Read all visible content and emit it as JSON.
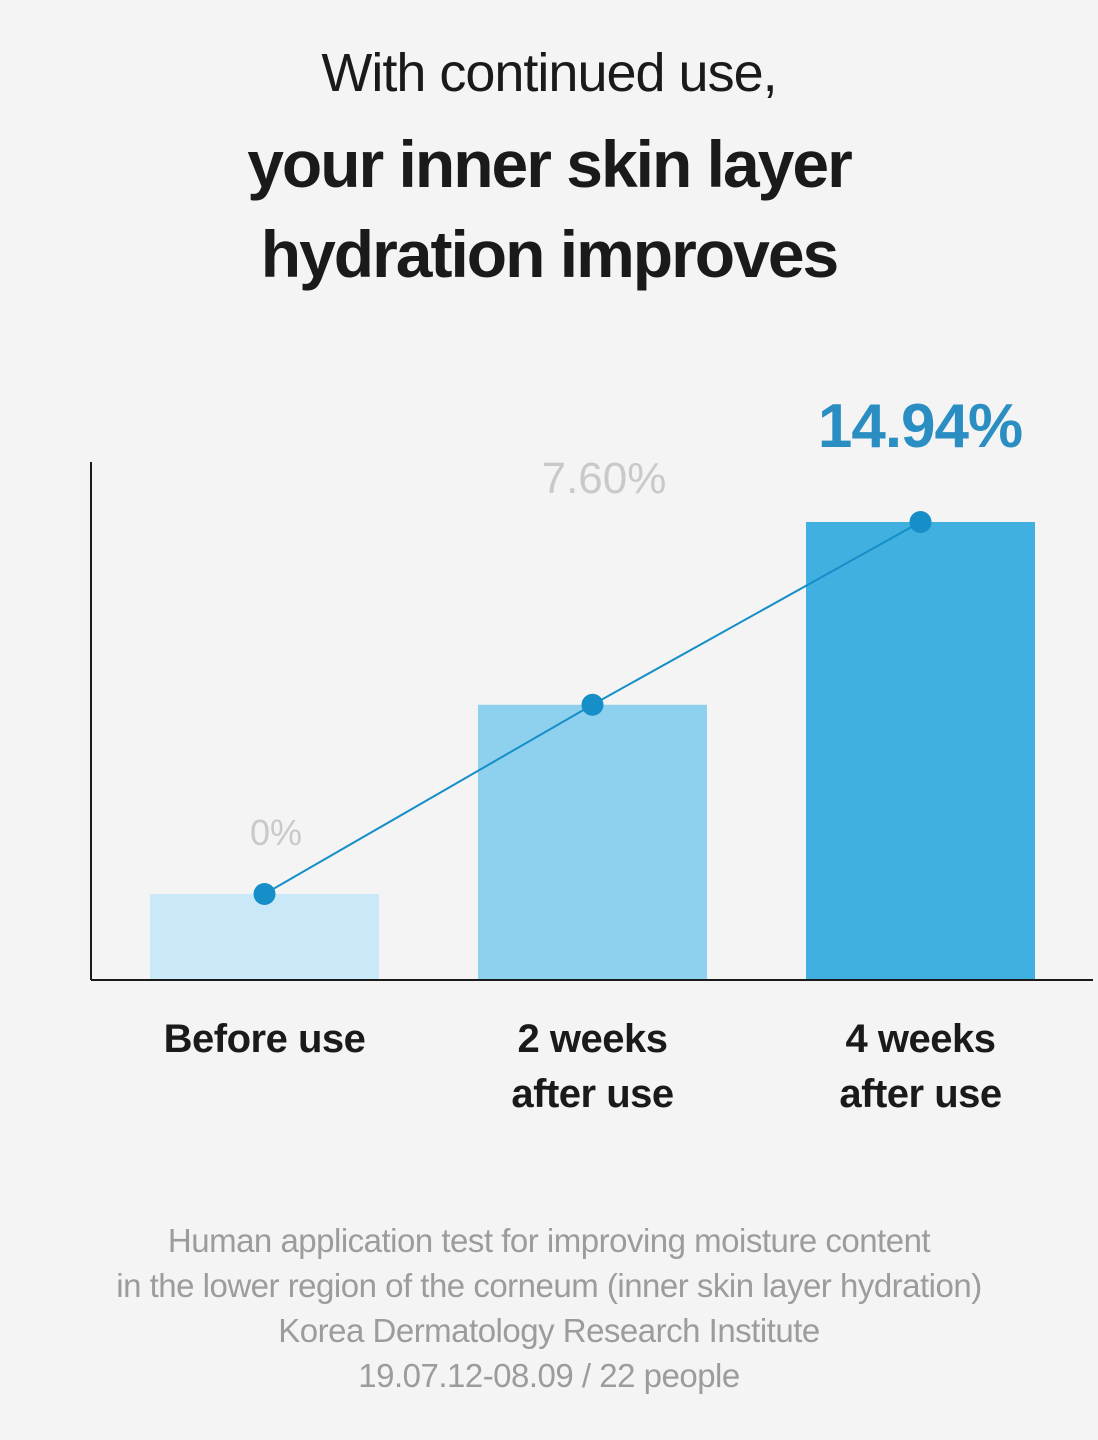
{
  "heading": {
    "line1": "With continued use,",
    "line2": "your inner skin layer",
    "line3": "hydration improves"
  },
  "chart_data": {
    "type": "bar",
    "categories": [
      [
        "Before use"
      ],
      [
        "2 weeks",
        "after use"
      ],
      [
        "4 weeks",
        "after use"
      ]
    ],
    "values": [
      0,
      7.6,
      14.94
    ],
    "value_labels": [
      "0%",
      "7.60%",
      "14.94%"
    ],
    "overlay_line": true,
    "bar_colors": [
      "#c9e8f8",
      "#8dd1ef",
      "#3fb0e0"
    ],
    "label_colors": [
      "#c9c9c9",
      "#c9c9c9",
      "#2a8ec2"
    ],
    "line_color": "#168ec8",
    "axis_color": "#1a1a1a",
    "grid": false
  },
  "footnote": [
    "Human application test for improving moisture content",
    "in the lower region of the corneum (inner skin layer hydration)",
    "Korea Dermatology Research Institute",
    "19.07.12-08.09 / 22 people"
  ]
}
